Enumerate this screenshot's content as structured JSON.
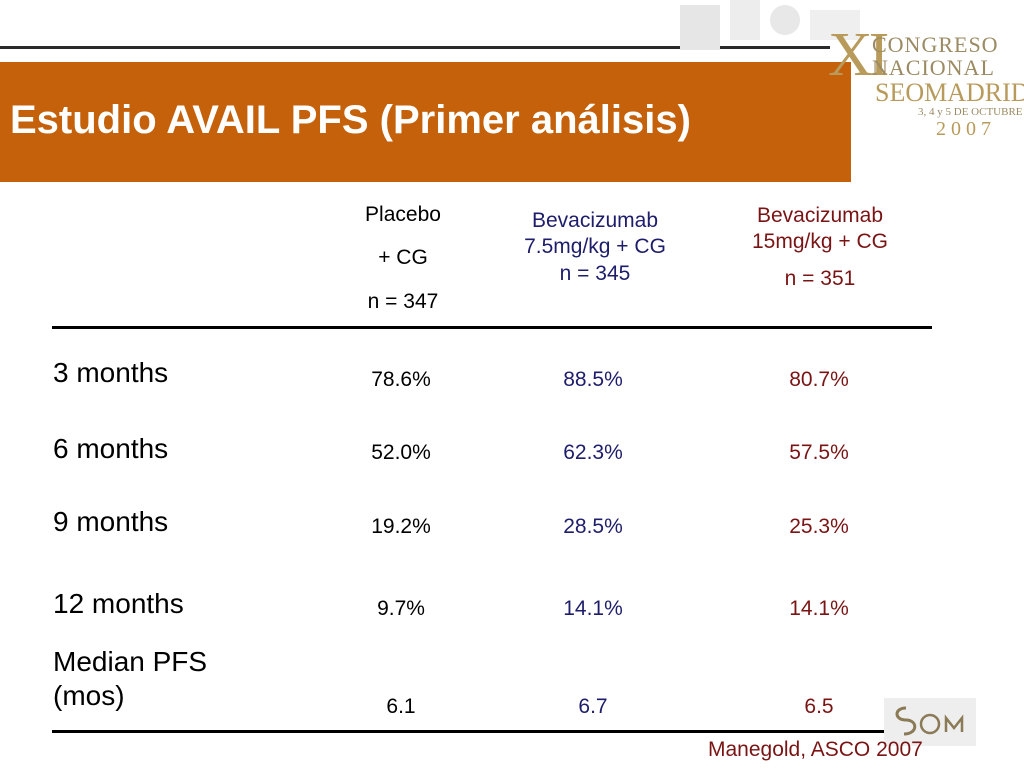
{
  "slide": {
    "title": "Estudio AVAIL PFS (Primer análisis)"
  },
  "logo": {
    "roman": "XI",
    "line1": "CONGRESO",
    "line2": "NACIONAL",
    "seom": "SEOMADRID",
    "date": "3, 4 y 5 DE OCTUBRE",
    "year": "2007"
  },
  "columns": [
    {
      "lines": [
        "Placebo",
        "+ CG",
        "n = 347"
      ]
    },
    {
      "lines": [
        "Bevacizumab",
        "7.5mg/kg + CG",
        "n = 345"
      ]
    },
    {
      "lines": [
        "Bevacizumab",
        "15mg/kg + CG",
        "n = 351"
      ]
    }
  ],
  "rows": [
    {
      "label": "3 months",
      "values": [
        "78.6%",
        "88.5%",
        "80.7%"
      ]
    },
    {
      "label": "6 months",
      "values": [
        "52.0%",
        "62.3%",
        "57.5%"
      ]
    },
    {
      "label": "9 months",
      "values": [
        "19.2%",
        "28.5%",
        "25.3%"
      ]
    },
    {
      "label": "12 months",
      "values": [
        "9.7%",
        "14.1%",
        "14.1%"
      ]
    },
    {
      "label_lines": [
        "Median PFS",
        "(mos)"
      ],
      "values": [
        "6.1",
        "6.7",
        "6.5"
      ]
    }
  ],
  "citation": "Manegold, ASCO 2007",
  "colors": {
    "banner": "#c4610a",
    "placebo": "#000000",
    "bev_7_5": "#1d1d6b",
    "bev_15": "#7a1414"
  }
}
